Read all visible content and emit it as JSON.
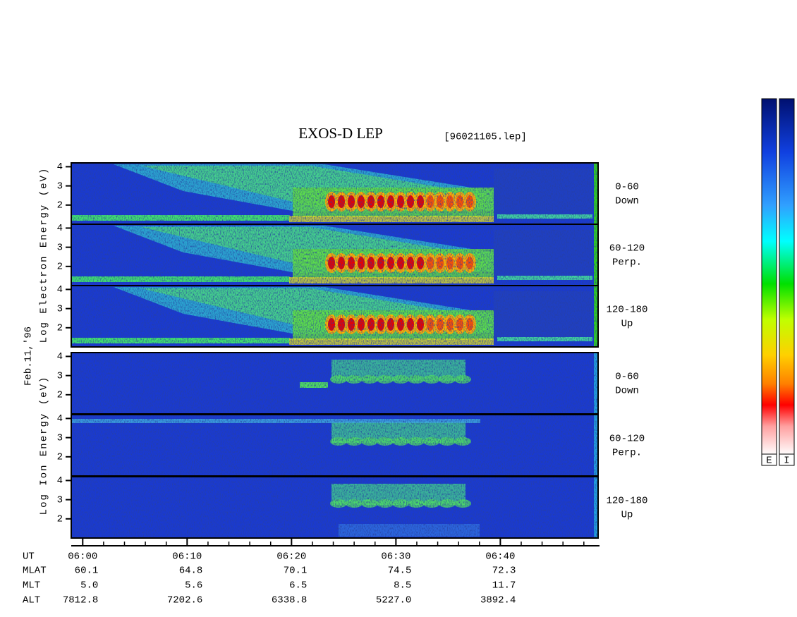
{
  "chart_data": {
    "type": "spectrogram",
    "title": "EXOS-D LEP",
    "subtitle": "[96021105.lep]",
    "date_label": "Feb.11,'96",
    "groups": [
      {
        "ylabel": "Log Electron Energy (eV)",
        "panels": [
          {
            "range": "0-60",
            "direction": "Down"
          },
          {
            "range": "60-120",
            "direction": "Perp."
          },
          {
            "range": "120-180",
            "direction": "Up"
          }
        ]
      },
      {
        "ylabel": "Log Ion Energy (eV)",
        "panels": [
          {
            "range": "0-60",
            "direction": "Down"
          },
          {
            "range": "60-120",
            "direction": "Perp."
          },
          {
            "range": "120-180",
            "direction": "Up"
          }
        ]
      }
    ],
    "ylim": [
      1,
      4.2
    ],
    "yticks": [
      2,
      3,
      4
    ],
    "xlim": [
      -1.1,
      49.5
    ],
    "xticks": [
      {
        "value": 0,
        "label": "06:00"
      },
      {
        "value": 10,
        "label": "06:10"
      },
      {
        "value": 20,
        "label": "06:20"
      },
      {
        "value": 30,
        "label": "06:30"
      },
      {
        "value": 40,
        "label": "06:40"
      }
    ],
    "minor_xticks": [
      2,
      4,
      6,
      8,
      12,
      14,
      16,
      18,
      22,
      24,
      26,
      28,
      32,
      34,
      36,
      38,
      42,
      44,
      46,
      48
    ],
    "xlabel": "UT",
    "ephemeris": [
      {
        "name": "MLAT",
        "values": [
          "60.1",
          "64.8",
          "70.1",
          "74.5",
          "72.3"
        ]
      },
      {
        "name": "MLT",
        "values": [
          "5.0",
          "5.6",
          "6.5",
          "8.5",
          "11.7"
        ]
      },
      {
        "name": "ALT",
        "values": [
          "7812.8",
          "7202.6",
          "6338.8",
          "5227.0",
          "3892.4"
        ]
      }
    ],
    "colorbars": [
      "E",
      "I"
    ]
  }
}
